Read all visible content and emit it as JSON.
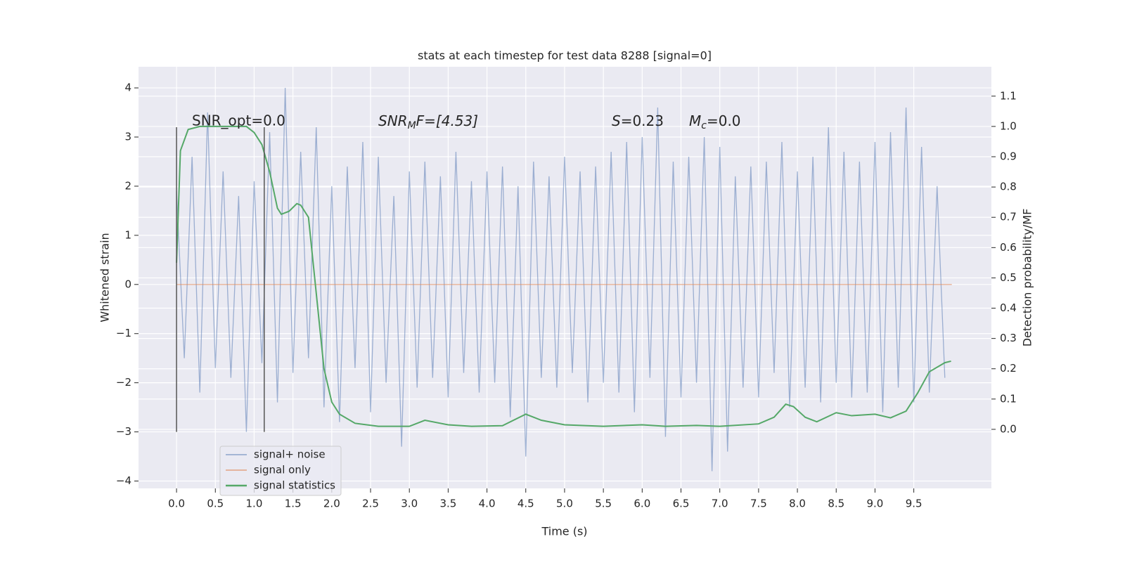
{
  "chart_data": {
    "type": "line",
    "title": "stats at each timestep for test data 8288 [signal=0]",
    "xlabel": "Time (s)",
    "ylabel": "Whitened strain",
    "y2label": "Detection probability/MF",
    "annotations": [
      {
        "text": "SNR_opt=0.0"
      },
      {
        "base": "SNR",
        "sub": "M",
        "rest": "F=[4.53]"
      },
      {
        "base": "S",
        "rest": "=0.23"
      },
      {
        "base": "M",
        "sub": "c",
        "rest": "=0.0"
      }
    ],
    "xlim": [
      -0.49,
      10.5
    ],
    "ylim": [
      -4.15,
      4.43
    ],
    "y2lim": [
      -0.195,
      1.197
    ],
    "xticks": [
      {
        "value": 0,
        "label": "0.0"
      },
      0.5,
      {
        "value": 1,
        "label": "1.0"
      },
      1.5,
      {
        "value": 2,
        "label": "2.0"
      },
      2.5,
      {
        "value": 3,
        "label": "3.0"
      },
      3.5,
      {
        "value": 4,
        "label": "4.0"
      },
      4.5,
      {
        "value": 5,
        "label": "5.0"
      },
      5.5,
      {
        "value": 6,
        "label": "6.0"
      },
      6.5,
      {
        "value": 7,
        "label": "7.0"
      },
      7.5,
      {
        "value": 8,
        "label": "8.0"
      },
      8.5,
      {
        "value": 9,
        "label": "9.0"
      },
      9.5
    ],
    "yticks": [
      {
        "value": -4,
        "label": "−4"
      },
      {
        "value": -3,
        "label": "−3"
      },
      {
        "value": -2,
        "label": "−2"
      },
      {
        "value": -1,
        "label": "−1"
      },
      0,
      1,
      2,
      3,
      4
    ],
    "y2ticks": [
      {
        "value": 0,
        "label": "0.0"
      },
      0.1,
      0.2,
      0.3,
      0.4,
      0.5,
      0.6,
      0.7,
      0.8,
      0.9,
      {
        "value": 1,
        "label": "1.0"
      },
      1.1
    ],
    "grid": true,
    "legend": "lower left",
    "vlines": {
      "x": [
        0,
        1.13
      ],
      "ymin": -3,
      "ymax": 3.2,
      "color": "#555555"
    },
    "series": [
      {
        "name": "signal+ noise",
        "color": "#4c72b0",
        "x": [
          0,
          0.1,
          0.2,
          0.3,
          0.4,
          0.5,
          0.6,
          0.7,
          0.8,
          0.9,
          1,
          1.1,
          1.2,
          1.3,
          1.4,
          1.5,
          1.6,
          1.7,
          1.8,
          1.9,
          2,
          2.1,
          2.2,
          2.3,
          2.4,
          2.5,
          2.6,
          2.7,
          2.8,
          2.9,
          3,
          3.1,
          3.2,
          3.3,
          3.4,
          3.5,
          3.6,
          3.7,
          3.8,
          3.9,
          4,
          4.1,
          4.2,
          4.3,
          4.4,
          4.5,
          4.6,
          4.7,
          4.8,
          4.9,
          5,
          5.1,
          5.2,
          5.3,
          5.4,
          5.5,
          5.6,
          5.7,
          5.8,
          5.9,
          6,
          6.1,
          6.2,
          6.3,
          6.4,
          6.5,
          6.6,
          6.7,
          6.8,
          6.9,
          7,
          7.1,
          7.2,
          7.3,
          7.4,
          7.5,
          7.6,
          7.7,
          7.8,
          7.9,
          8,
          8.1,
          8.2,
          8.3,
          8.4,
          8.5,
          8.6,
          8.7,
          8.8,
          8.9,
          9,
          9.1,
          9.2,
          9.3,
          9.4,
          9.5,
          9.6,
          9.7,
          9.8,
          9.9
        ],
        "values": [
          1.9,
          -1.5,
          2.6,
          -2.2,
          3.5,
          -1.7,
          2.3,
          -1.9,
          1.8,
          -3.0,
          2.1,
          -1.6,
          3.1,
          -2.4,
          4.0,
          -1.8,
          2.7,
          -1.5,
          3.2,
          -2.5,
          2.0,
          -2.8,
          2.4,
          -1.7,
          2.9,
          -2.6,
          2.6,
          -2.0,
          1.8,
          -3.3,
          2.3,
          -2.1,
          2.5,
          -1.9,
          2.2,
          -2.3,
          2.7,
          -1.8,
          2.1,
          -2.2,
          2.3,
          -2.0,
          2.4,
          -2.7,
          2.0,
          -3.5,
          2.5,
          -1.9,
          2.2,
          -2.1,
          2.6,
          -1.8,
          2.3,
          -2.4,
          2.4,
          -2.0,
          2.7,
          -2.2,
          2.9,
          -2.6,
          3.0,
          -1.9,
          3.6,
          -3.1,
          2.5,
          -2.3,
          2.6,
          -2.0,
          3.0,
          -3.8,
          2.8,
          -3.4,
          2.2,
          -2.1,
          2.4,
          -2.3,
          2.5,
          -1.8,
          2.9,
          -2.5,
          2.3,
          -2.1,
          2.6,
          -2.4,
          3.2,
          -2.0,
          2.7,
          -2.3,
          2.5,
          -2.2,
          2.9,
          -2.6,
          3.1,
          -2.1,
          3.6,
          -2.4,
          2.8,
          -2.2,
          2.0,
          -1.9
        ]
      },
      {
        "name": "signal only",
        "color": "#dd8452",
        "x": [
          0,
          9.99
        ],
        "values": [
          0,
          0
        ]
      },
      {
        "name": "signal statistics",
        "color": "#55a868",
        "axis": "y2",
        "x": [
          0,
          0.05,
          0.15,
          0.3,
          0.9,
          1.0,
          1.1,
          1.2,
          1.3,
          1.35,
          1.45,
          1.55,
          1.6,
          1.7,
          1.8,
          1.9,
          2.0,
          2.1,
          2.3,
          2.6,
          3.0,
          3.2,
          3.5,
          3.8,
          4.2,
          4.5,
          4.7,
          5.0,
          5.5,
          6.0,
          6.3,
          6.7,
          7.0,
          7.5,
          7.7,
          7.85,
          7.95,
          8.1,
          8.25,
          8.5,
          8.7,
          9.0,
          9.2,
          9.4,
          9.55,
          9.7,
          9.9,
          9.98
        ],
        "values": [
          0.55,
          0.92,
          0.99,
          1.0,
          1.0,
          0.98,
          0.94,
          0.85,
          0.73,
          0.71,
          0.72,
          0.745,
          0.74,
          0.7,
          0.45,
          0.2,
          0.09,
          0.05,
          0.02,
          0.01,
          0.01,
          0.03,
          0.015,
          0.01,
          0.012,
          0.05,
          0.03,
          0.015,
          0.01,
          0.015,
          0.01,
          0.013,
          0.01,
          0.018,
          0.04,
          0.083,
          0.075,
          0.04,
          0.025,
          0.055,
          0.045,
          0.05,
          0.038,
          0.06,
          0.12,
          0.19,
          0.22,
          0.225
        ]
      }
    ]
  }
}
